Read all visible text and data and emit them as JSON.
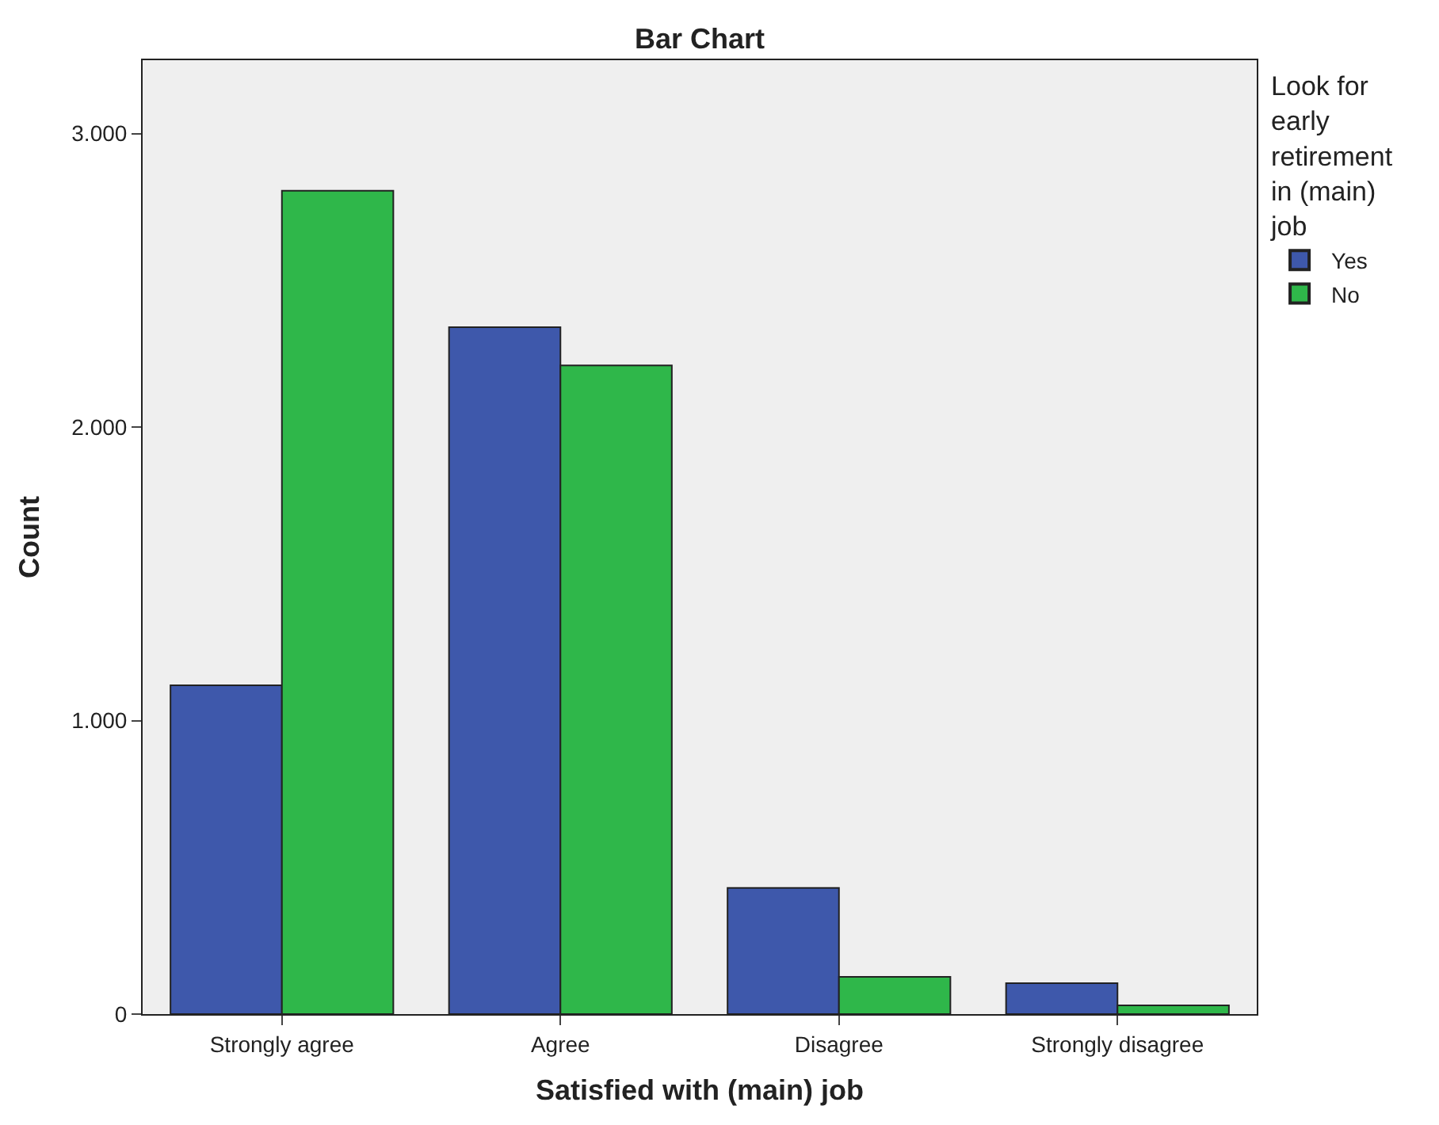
{
  "chart_data": {
    "type": "bar",
    "title": "Bar Chart",
    "xlabel": "Satisfied with (main) job",
    "ylabel": "Count",
    "legend_title": "Look for early retirement in (main) job",
    "categories": [
      "Strongly agree",
      "Agree",
      "Disagree",
      "Strongly disagree"
    ],
    "series": [
      {
        "name": "Yes",
        "color": "#3e58ab",
        "values": [
          1120,
          2340,
          430,
          105
        ]
      },
      {
        "name": "No",
        "color": "#2fb74a",
        "values": [
          2805,
          2210,
          127,
          30
        ]
      }
    ],
    "ylim": [
      0,
      3250
    ],
    "yticks": [
      {
        "value": 0,
        "label": "0"
      },
      {
        "value": 1000,
        "label": "1.000"
      },
      {
        "value": 2000,
        "label": "2.000"
      },
      {
        "value": 3000,
        "label": "3.000"
      }
    ],
    "grid": false,
    "legend": "top right"
  }
}
